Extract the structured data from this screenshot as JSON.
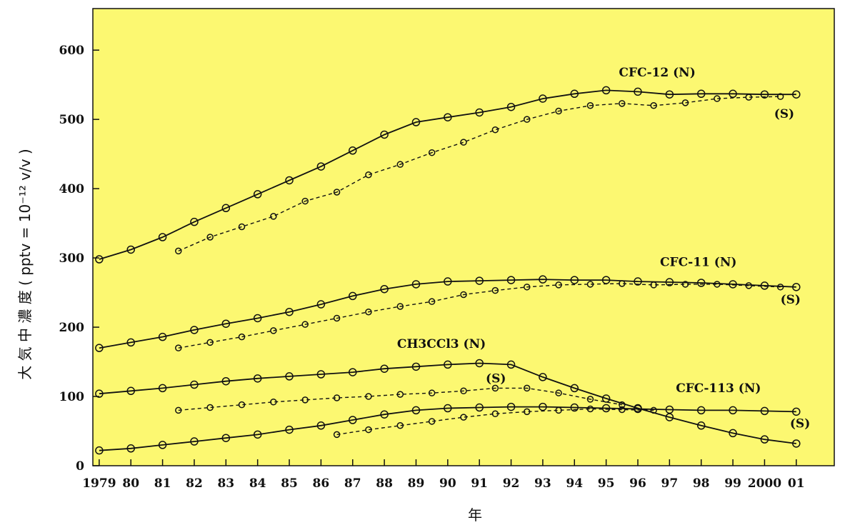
{
  "chart_data": {
    "type": "line",
    "background": "#fcf871",
    "ylabel": "大 気 中 濃 度 ( pptv = 10⁻¹² v/v )",
    "xlabel": "年",
    "ylim": [
      0,
      660
    ],
    "xlim": [
      1978.8,
      2002.2
    ],
    "yticks": [
      0,
      100,
      200,
      300,
      400,
      500,
      600
    ],
    "xticks": [
      {
        "v": 1979,
        "label": "1979"
      },
      {
        "v": 1980,
        "label": "80"
      },
      {
        "v": 1981,
        "label": "81"
      },
      {
        "v": 1982,
        "label": "82"
      },
      {
        "v": 1983,
        "label": "83"
      },
      {
        "v": 1984,
        "label": "84"
      },
      {
        "v": 1985,
        "label": "85"
      },
      {
        "v": 1986,
        "label": "86"
      },
      {
        "v": 1987,
        "label": "87"
      },
      {
        "v": 1988,
        "label": "88"
      },
      {
        "v": 1989,
        "label": "89"
      },
      {
        "v": 1990,
        "label": "90"
      },
      {
        "v": 1991,
        "label": "91"
      },
      {
        "v": 1992,
        "label": "92"
      },
      {
        "v": 1993,
        "label": "93"
      },
      {
        "v": 1994,
        "label": "94"
      },
      {
        "v": 1995,
        "label": "95"
      },
      {
        "v": 1996,
        "label": "96"
      },
      {
        "v": 1997,
        "label": "97"
      },
      {
        "v": 1998,
        "label": "98"
      },
      {
        "v": 1999,
        "label": "99"
      },
      {
        "v": 2000,
        "label": "2000"
      },
      {
        "v": 2001,
        "label": "01"
      }
    ],
    "series": [
      {
        "name": "CFC-12 (N)",
        "style": "solid",
        "x": [
          1979,
          1980,
          1981,
          1982,
          1983,
          1984,
          1985,
          1986,
          1987,
          1988,
          1989,
          1990,
          1991,
          1992,
          1993,
          1994,
          1995,
          1996,
          1997,
          1998,
          1999,
          2000,
          2001
        ],
        "y": [
          298,
          312,
          330,
          352,
          372,
          392,
          412,
          432,
          455,
          478,
          496,
          503,
          510,
          518,
          530,
          537,
          542,
          540,
          536,
          537,
          537,
          536,
          536
        ]
      },
      {
        "name": "CFC-12 (S)",
        "style": "dashed",
        "x": [
          1981.5,
          1982.5,
          1983.5,
          1984.5,
          1985.5,
          1986.5,
          1987.5,
          1988.5,
          1989.5,
          1990.5,
          1991.5,
          1992.5,
          1993.5,
          1994.5,
          1995.5,
          1996.5,
          1997.5,
          1998.5,
          1999.5,
          2000.5
        ],
        "y": [
          310,
          330,
          345,
          360,
          382,
          395,
          420,
          435,
          452,
          467,
          485,
          500,
          512,
          520,
          523,
          520,
          524,
          530,
          532,
          533
        ]
      },
      {
        "name": "CFC-11 (N)",
        "style": "solid",
        "x": [
          1979,
          1980,
          1981,
          1982,
          1983,
          1984,
          1985,
          1986,
          1987,
          1988,
          1989,
          1990,
          1991,
          1992,
          1993,
          1994,
          1995,
          1996,
          1997,
          1998,
          1999,
          2000,
          2001
        ],
        "y": [
          170,
          178,
          186,
          196,
          205,
          213,
          222,
          233,
          245,
          255,
          262,
          266,
          267,
          268,
          269,
          268,
          268,
          266,
          265,
          264,
          262,
          260,
          258
        ]
      },
      {
        "name": "CFC-11 (S)",
        "style": "dashed",
        "x": [
          1981.5,
          1982.5,
          1983.5,
          1984.5,
          1985.5,
          1986.5,
          1987.5,
          1988.5,
          1989.5,
          1990.5,
          1991.5,
          1992.5,
          1993.5,
          1994.5,
          1995.5,
          1996.5,
          1997.5,
          1998.5,
          1999.5,
          2000.5
        ],
        "y": [
          170,
          178,
          186,
          195,
          204,
          213,
          222,
          230,
          237,
          247,
          253,
          258,
          261,
          262,
          263,
          261,
          262,
          262,
          260,
          258
        ]
      },
      {
        "name": "CH3CCl3 (N)",
        "style": "solid",
        "x": [
          1979,
          1980,
          1981,
          1982,
          1983,
          1984,
          1985,
          1986,
          1987,
          1988,
          1989,
          1990,
          1991,
          1992,
          1993,
          1994,
          1995,
          1996,
          1997,
          1998,
          1999,
          2000,
          2001
        ],
        "y": [
          104,
          108,
          112,
          117,
          122,
          126,
          129,
          132,
          135,
          140,
          143,
          146,
          148,
          146,
          128,
          112,
          97,
          83,
          70,
          58,
          47,
          38,
          32
        ]
      },
      {
        "name": "CH3CCl3 (S)",
        "style": "dashed",
        "x": [
          1981.5,
          1982.5,
          1983.5,
          1984.5,
          1985.5,
          1986.5,
          1987.5,
          1988.5,
          1989.5,
          1990.5,
          1991.5,
          1992.5,
          1993.5,
          1994.5,
          1995.5
        ],
        "y": [
          80,
          84,
          88,
          92,
          95,
          98,
          100,
          103,
          105,
          108,
          112,
          112,
          105,
          96,
          88
        ]
      },
      {
        "name": "CFC-113 (N)",
        "style": "solid",
        "x": [
          1979,
          1980,
          1981,
          1982,
          1983,
          1984,
          1985,
          1986,
          1987,
          1988,
          1989,
          1990,
          1991,
          1992,
          1993,
          1994,
          1995,
          1996,
          1997,
          1998,
          1999,
          2000,
          2001
        ],
        "y": [
          22,
          25,
          30,
          35,
          40,
          45,
          52,
          58,
          66,
          74,
          80,
          83,
          84,
          85,
          85,
          84,
          83,
          82,
          81,
          80,
          80,
          79,
          78
        ]
      },
      {
        "name": "CFC-113 (S)",
        "style": "dashed",
        "x": [
          1986.5,
          1987.5,
          1988.5,
          1989.5,
          1990.5,
          1991.5,
          1992.5,
          1993.5,
          1994.5,
          1995.5,
          1996.5
        ],
        "y": [
          45,
          52,
          58,
          64,
          70,
          75,
          78,
          80,
          82,
          81,
          80
        ]
      }
    ],
    "annotations": [
      {
        "text": "CFC-12 (N)",
        "x": 1995.4,
        "y": 562
      },
      {
        "text": "(S)",
        "x": 2000.3,
        "y": 502
      },
      {
        "text": "CFC-11 (N)",
        "x": 1996.7,
        "y": 288
      },
      {
        "text": "(S)",
        "x": 2000.5,
        "y": 234
      },
      {
        "text": "CH3CCl3 (N)",
        "x": 1988.4,
        "y": 170
      },
      {
        "text": "(S)",
        "x": 1991.2,
        "y": 120
      },
      {
        "text": "CFC-113 (N)",
        "x": 1997.2,
        "y": 106
      },
      {
        "text": "(S)",
        "x": 2000.8,
        "y": 55
      }
    ]
  }
}
